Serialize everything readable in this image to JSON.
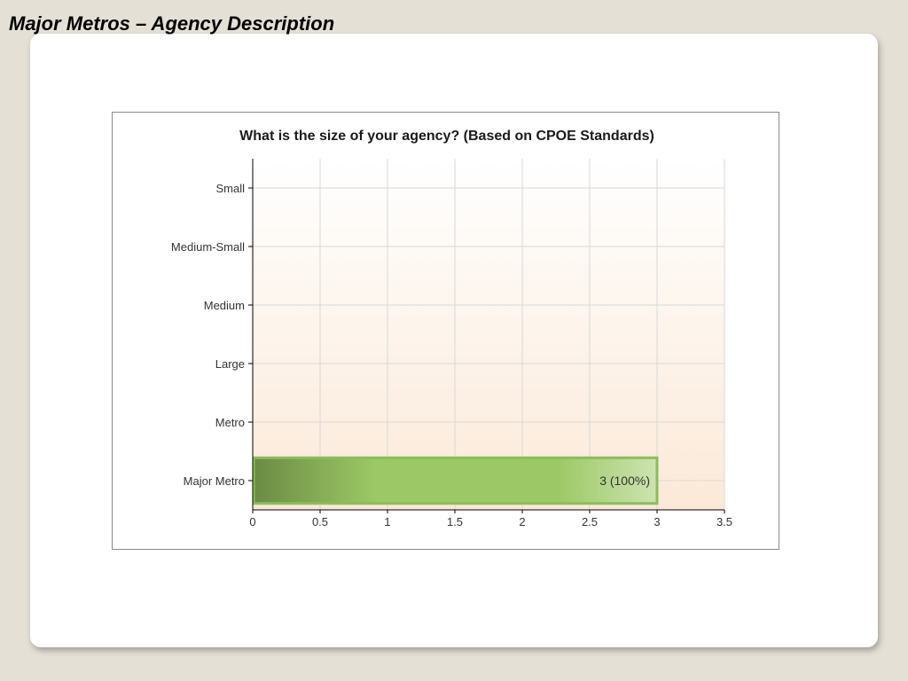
{
  "slide": {
    "title": "Major Metros – Agency Description"
  },
  "chart_data": {
    "type": "bar",
    "orientation": "horizontal",
    "title": "What is the size of your agency? (Based on CPOE Standards)",
    "categories": [
      "Small",
      "Medium-Small",
      "Medium",
      "Large",
      "Metro",
      "Major Metro"
    ],
    "values": [
      0,
      0,
      0,
      0,
      0,
      3
    ],
    "data_labels": [
      "",
      "",
      "",
      "",
      "",
      "3 (100%)"
    ],
    "xlim": [
      0,
      3.5
    ],
    "xticks": [
      0,
      0.5,
      1,
      1.5,
      2,
      2.5,
      3,
      3.5
    ],
    "xtick_labels": [
      "0",
      "0.5",
      "1",
      "1.5",
      "2",
      "2.5",
      "3",
      "3.5"
    ],
    "xlabel": "",
    "ylabel": "",
    "grid": true,
    "legend": "none",
    "colors": {
      "bar_dark": "#6b8a45",
      "bar_mid": "#9cc865",
      "bar_light": "#cde3b0",
      "bar_border": "#8bbd5c",
      "plot_top": "#ffffff",
      "plot_bottom": "#fbe9d8",
      "grid": "#d8d8d8"
    }
  }
}
